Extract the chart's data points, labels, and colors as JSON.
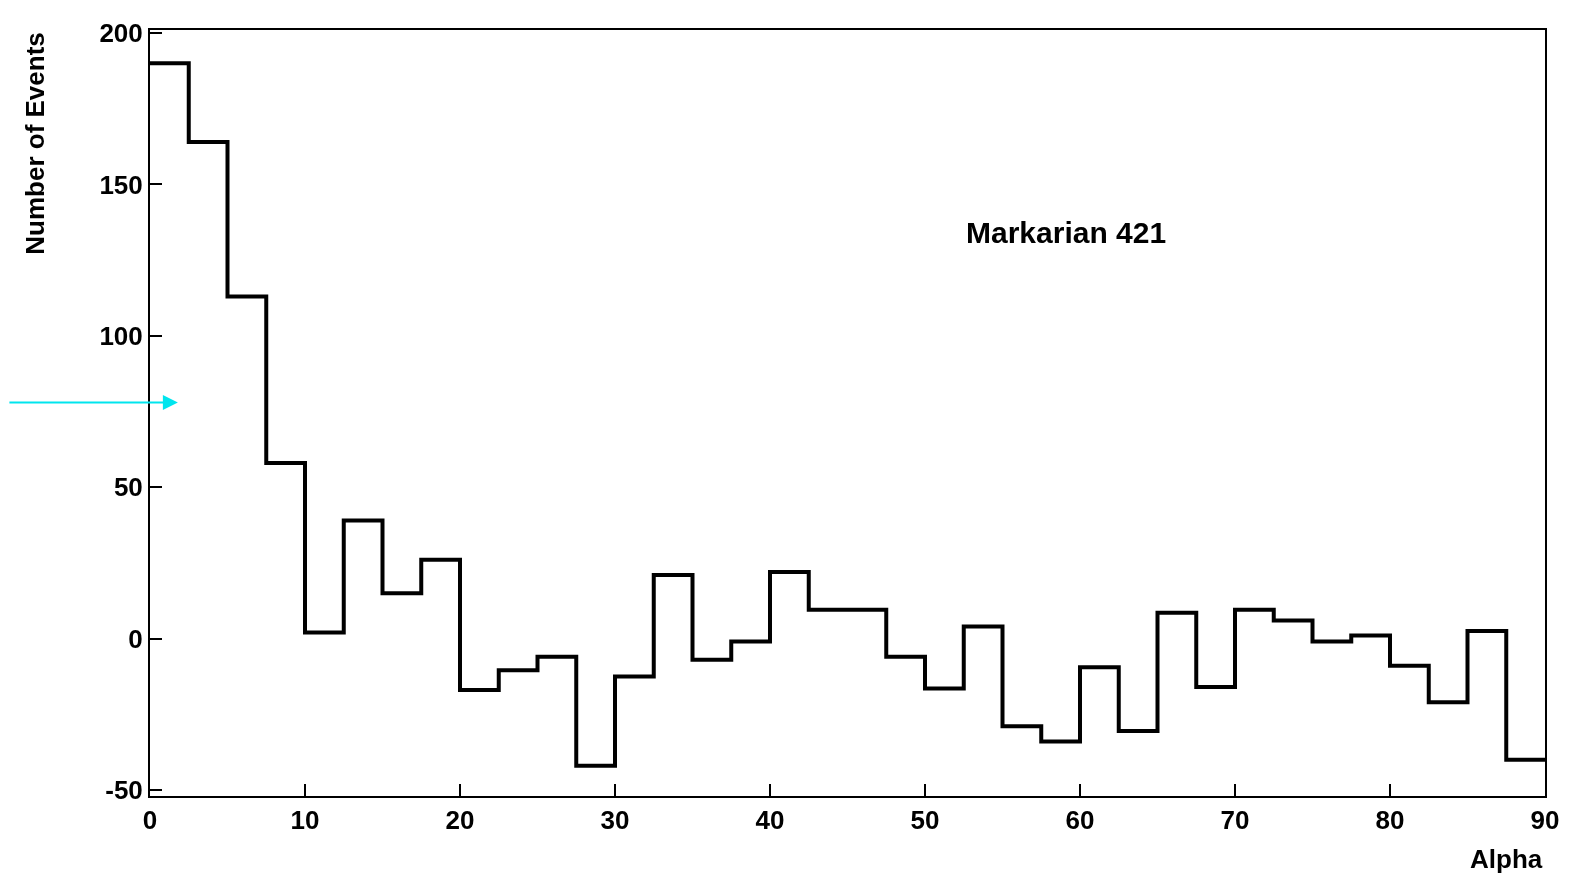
{
  "chart_data": {
    "type": "histogram",
    "xlabel": "Alpha",
    "ylabel": "Number of Events",
    "annotations": [
      "Markarian 421"
    ],
    "bins": [
      0,
      2.5,
      5,
      7.5,
      10,
      12.5,
      15,
      17.5,
      20,
      22.5,
      25,
      27.5,
      30,
      32.5,
      35,
      37.5,
      40,
      42.5,
      45,
      47.5,
      50,
      52.5,
      55,
      57.5,
      60,
      62.5,
      65,
      67.5,
      70,
      72.5,
      75,
      77.5,
      80,
      82.5,
      85,
      87.5,
      90
    ],
    "values": [
      190,
      164,
      113,
      58,
      2,
      39,
      15,
      26,
      -17,
      -10.5,
      -6,
      -42,
      -12.5,
      21,
      -7,
      -1,
      22,
      9.5,
      9.5,
      -6,
      -16.5,
      4,
      -29,
      -34,
      -9.5,
      -30.5,
      8.5,
      -16,
      9.5,
      6,
      -1,
      1,
      -9,
      -21,
      2.5,
      -40
    ],
    "color": "#000000",
    "xlim": [
      0,
      90
    ],
    "xticks": [
      0,
      10,
      20,
      30,
      40,
      50,
      60,
      70,
      80,
      90
    ],
    "ylim": [
      -52,
      201
    ],
    "yticks": [
      -50,
      0,
      50,
      100,
      150,
      200
    ]
  }
}
